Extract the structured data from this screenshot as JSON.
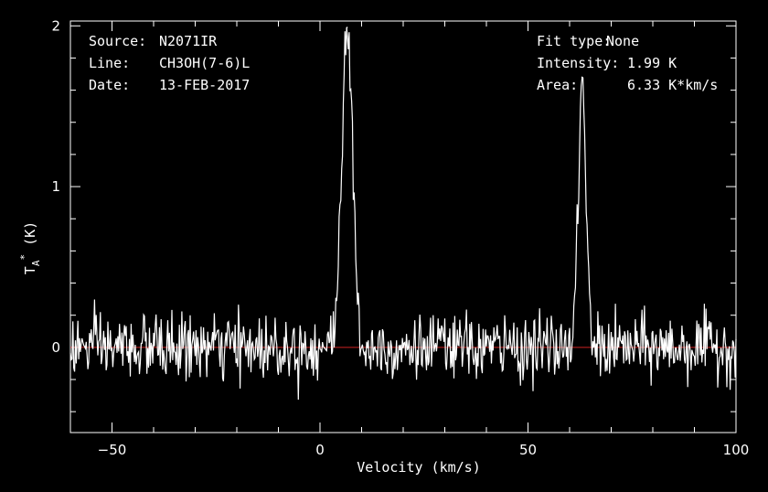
{
  "chart_data": {
    "type": "line",
    "xlabel": "Velocity (km/s)",
    "ylabel": {
      "main": "T",
      "sub": "A",
      "sup": "*",
      "unit": " (K)"
    },
    "xlim": [
      -60,
      100
    ],
    "ylim": [
      -0.53,
      2.03
    ],
    "x_ticks": [
      -50,
      0,
      50,
      100
    ],
    "y_ticks": [
      0,
      1,
      2
    ],
    "baseline": 0,
    "colors": {
      "background": "#000000",
      "line": "#ffffff",
      "baseline": "#cc2222",
      "frame": "#ffffff"
    },
    "info_left": [
      {
        "key": "Source:",
        "value": "N2071IR"
      },
      {
        "key": "Line:",
        "value": "CH3OH(7-6)L"
      },
      {
        "key": "Date:",
        "value": "13-FEB-2017"
      }
    ],
    "info_right": [
      {
        "key": "Fit type:",
        "value": "None"
      },
      {
        "key": "Intensity:",
        "value": "1.99 K"
      },
      {
        "key": "Area:",
        "value": "6.33 K*km/s"
      }
    ],
    "series": [
      {
        "noise_sigma": 0.1,
        "peaks": [
          {
            "x": 6.5,
            "amplitude": 1.99,
            "width": 1.3
          },
          {
            "x": 63.0,
            "amplitude": 1.68,
            "width": 0.9
          }
        ],
        "channel_width": 0.2
      }
    ]
  }
}
